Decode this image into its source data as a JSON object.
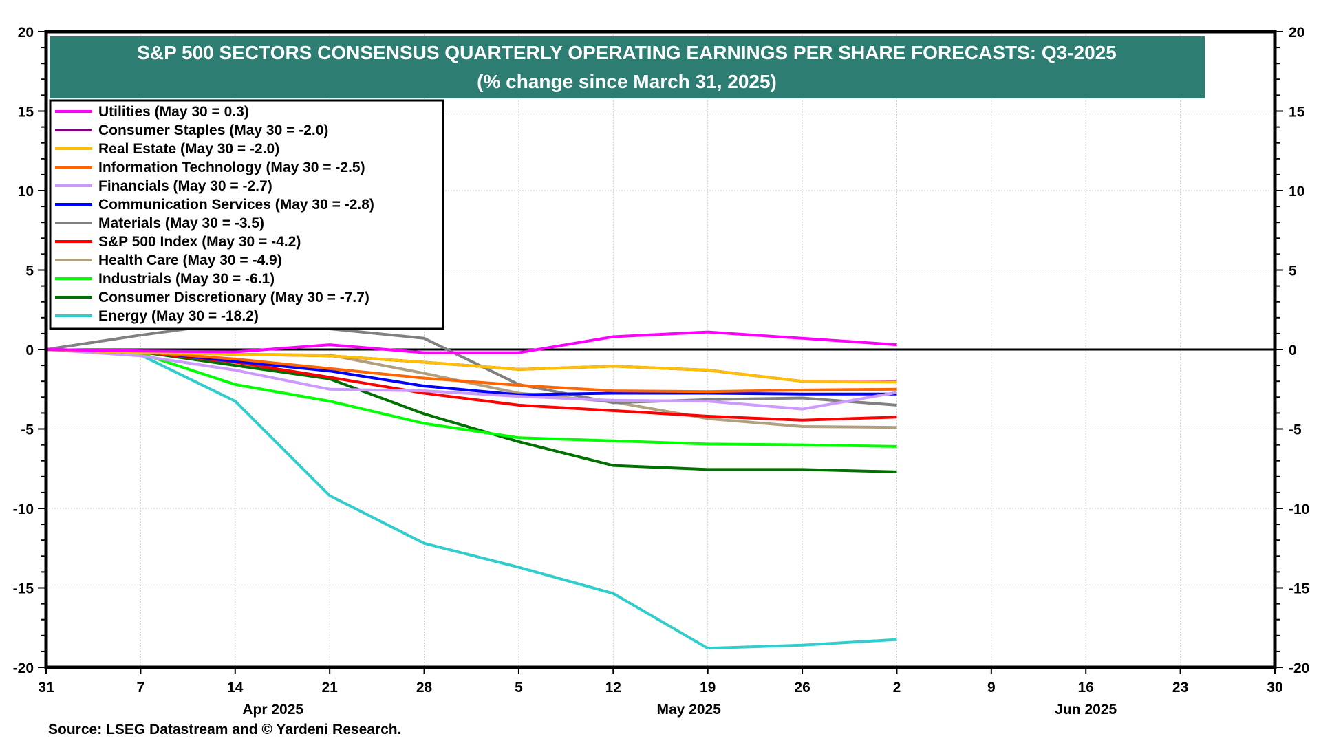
{
  "chart_data": {
    "type": "line",
    "title": "S&P 500 SECTORS CONSENSUS QUARTERLY OPERATING EARNINGS PER SHARE FORECASTS: Q3-2025",
    "subtitle": "(% change since March 31, 2025)",
    "source": "Source: LSEG Datastream and © Yardeni Research.",
    "xlabel": "",
    "ylabel": "",
    "ylim": [
      -20,
      20
    ],
    "y_ticks": [
      "20",
      "15",
      "10",
      "5",
      "0",
      "-5",
      "-10",
      "-15",
      "-20"
    ],
    "y_tick_values": [
      20,
      15,
      10,
      5,
      0,
      -5,
      -10,
      -15,
      -20
    ],
    "x_ticks": [
      "31",
      "7",
      "14",
      "21",
      "28",
      "5",
      "12",
      "19",
      "26",
      "2",
      "9",
      "16",
      "23",
      "30"
    ],
    "x_tick_weeks": [
      0,
      1,
      2,
      3,
      4,
      5,
      6,
      7,
      8,
      9,
      10,
      11,
      12,
      13
    ],
    "xlim_weeks": [
      0,
      13
    ],
    "month_labels": [
      {
        "label": "Apr 2025",
        "center_week": 2.4
      },
      {
        "label": "May 2025",
        "center_week": 6.8
      },
      {
        "label": "Jun 2025",
        "center_week": 11.0
      }
    ],
    "x": [
      "2025-03-31",
      "2025-04-07",
      "2025-04-14",
      "2025-04-21",
      "2025-04-28",
      "2025-05-05",
      "2025-05-12",
      "2025-05-19",
      "2025-05-26",
      "2025-06-02"
    ],
    "x_weeks": [
      0,
      1,
      2,
      3,
      4,
      5,
      6,
      7,
      8,
      9
    ],
    "grid": true,
    "legend_position": "top-left",
    "series": [
      {
        "name": "Utilities",
        "legend": "Utilities (May 30 = 0.3)",
        "color": "#ff00ff",
        "values": [
          0,
          -0.1,
          -0.15,
          0.3,
          -0.2,
          -0.2,
          0.8,
          1.1,
          0.7,
          0.3
        ]
      },
      {
        "name": "Consumer Staples",
        "legend": "Consumer Staples (May 30 = -2.0)",
        "color": "#800080",
        "values": [
          0,
          -0.2,
          -0.3,
          -0.4,
          -0.8,
          -1.25,
          -1.05,
          -1.3,
          -2.0,
          -2.0
        ]
      },
      {
        "name": "Real Estate",
        "legend": "Real Estate (May 30 = -2.0)",
        "color": "#ffc000",
        "values": [
          0,
          -0.2,
          -0.3,
          -0.4,
          -0.8,
          -1.25,
          -1.05,
          -1.3,
          -2.0,
          -2.05
        ]
      },
      {
        "name": "Information Technology",
        "legend": "Information Technology (May 30 = -2.5)",
        "color": "#ff6600",
        "values": [
          0,
          -0.15,
          -0.6,
          -1.2,
          -1.8,
          -2.25,
          -2.6,
          -2.65,
          -2.55,
          -2.5
        ]
      },
      {
        "name": "Financials",
        "legend": "Financials (May 30 = -2.7)",
        "color": "#cc99ff",
        "values": [
          0,
          -0.4,
          -1.3,
          -2.5,
          -2.6,
          -2.95,
          -3.2,
          -3.25,
          -3.75,
          -2.7
        ]
      },
      {
        "name": "Communication Services",
        "legend": "Communication Services (May 30 = -2.8)",
        "color": "#0000ff",
        "values": [
          0,
          -0.1,
          -0.75,
          -1.35,
          -2.3,
          -2.85,
          -2.75,
          -2.75,
          -2.8,
          -2.8
        ]
      },
      {
        "name": "Materials",
        "legend": "Materials (May 30 = -3.5)",
        "color": "#808080",
        "values": [
          0,
          0.9,
          1.7,
          1.3,
          0.7,
          -2.2,
          -3.35,
          -3.15,
          -3.05,
          -3.5
        ]
      },
      {
        "name": "S&P 500 Index",
        "legend": "S&P 500 Index (May 30 = -4.2)",
        "color": "#ff0000",
        "values": [
          0,
          -0.15,
          -0.8,
          -1.75,
          -2.75,
          -3.5,
          -3.85,
          -4.2,
          -4.45,
          -4.25
        ]
      },
      {
        "name": "Health Care",
        "legend": "Health Care (May 30 = -4.9)",
        "color": "#b0a080",
        "values": [
          0,
          -0.15,
          -0.3,
          -0.35,
          -1.5,
          -2.75,
          -3.3,
          -4.35,
          -4.85,
          -4.9
        ]
      },
      {
        "name": "Industrials",
        "legend": "Industrials (May 30 = -6.1)",
        "color": "#00ff00",
        "values": [
          0,
          -0.25,
          -2.2,
          -3.25,
          -4.65,
          -5.55,
          -5.75,
          -5.95,
          -6.0,
          -6.1
        ]
      },
      {
        "name": "Consumer Discretionary",
        "legend": "Consumer Discretionary (May 30 = -7.7)",
        "color": "#007000",
        "values": [
          0,
          -0.15,
          -1.0,
          -1.85,
          -4.05,
          -5.8,
          -7.3,
          -7.55,
          -7.55,
          -7.7
        ]
      },
      {
        "name": "Energy",
        "legend": "Energy (May 30 = -18.2)",
        "color": "#33cccc",
        "values": [
          0,
          -0.35,
          -3.25,
          -9.2,
          -12.2,
          -13.7,
          -15.35,
          -18.8,
          -18.6,
          -18.25
        ]
      }
    ],
    "draw_order": [
      11,
      10,
      9,
      8,
      7,
      6,
      5,
      4,
      3,
      1,
      2,
      0
    ],
    "title_bg_color": "#2e7d72"
  }
}
